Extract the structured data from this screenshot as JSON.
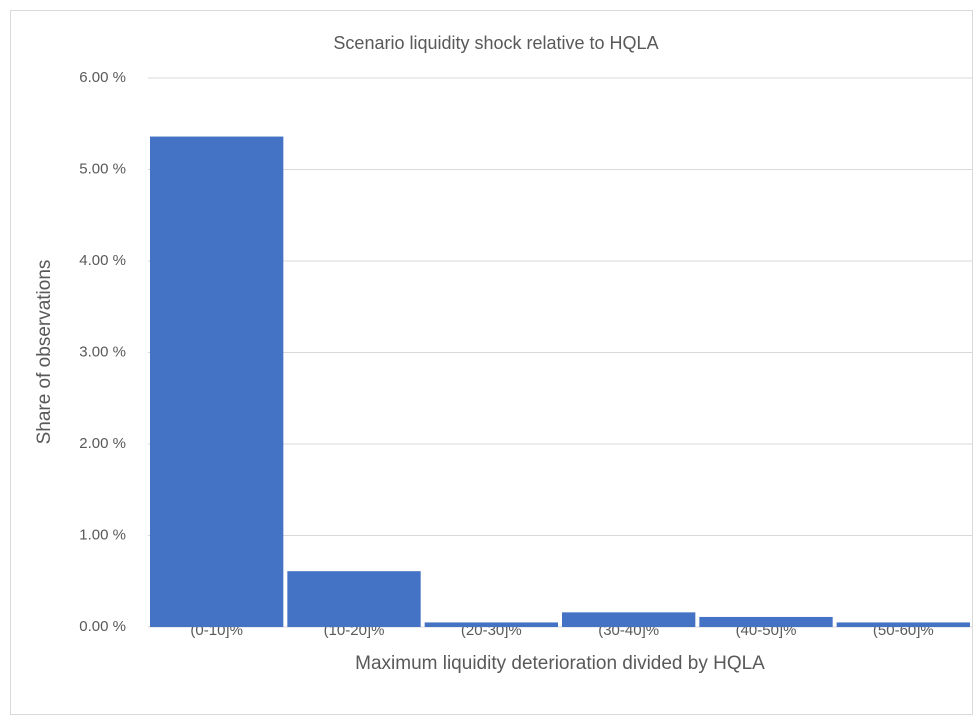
{
  "chart_data": {
    "type": "bar",
    "title": "Scenario liquidity shock relative to HQLA",
    "x_label": "Maximum liquidity deterioration divided by HQLA",
    "y_label": "Share of observations",
    "categories": [
      "(0-10]%",
      "(10-20]%",
      "(20-30]%",
      "(30-40]%",
      "(40-50]%",
      "(50-60]%"
    ],
    "values": [
      5.36,
      0.61,
      0.05,
      0.16,
      0.11,
      0.05
    ],
    "color": "#4472c4",
    "ylim": [
      0,
      6
    ],
    "yticks": [
      {
        "value": 0,
        "label": "0.00 %"
      },
      {
        "value": 1,
        "label": "1.00 %"
      },
      {
        "value": 2,
        "label": "2.00 %"
      },
      {
        "value": 3,
        "label": "3.00 %"
      },
      {
        "value": 4,
        "label": "4.00 %"
      },
      {
        "value": 5,
        "label": "5.00 %"
      },
      {
        "value": 6,
        "label": "6.00 %"
      }
    ],
    "grid": true
  }
}
